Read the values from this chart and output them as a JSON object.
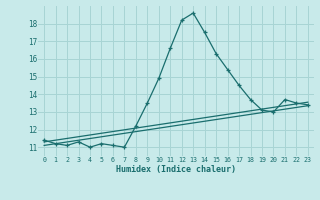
{
  "xlabel": "Humidex (Indice chaleur)",
  "bg_color": "#c8eaea",
  "grid_color": "#a8d4d4",
  "line_color": "#1a6e6e",
  "xlim": [
    -0.5,
    23.5
  ],
  "ylim": [
    10.5,
    19.0
  ],
  "yticks": [
    11,
    12,
    13,
    14,
    15,
    16,
    17,
    18
  ],
  "xticks": [
    0,
    1,
    2,
    3,
    4,
    5,
    6,
    7,
    8,
    9,
    10,
    11,
    12,
    13,
    14,
    15,
    16,
    17,
    18,
    19,
    20,
    21,
    22,
    23
  ],
  "series1_x": [
    0,
    1,
    2,
    3,
    4,
    5,
    6,
    7,
    8,
    9,
    10,
    11,
    12,
    13,
    14,
    15,
    16,
    17,
    18,
    19,
    20,
    21,
    22,
    23
  ],
  "series1_y": [
    11.4,
    11.2,
    11.1,
    11.3,
    11.0,
    11.2,
    11.1,
    11.0,
    12.2,
    13.5,
    14.9,
    16.6,
    18.2,
    18.6,
    17.5,
    16.3,
    15.4,
    14.5,
    13.7,
    13.1,
    13.0,
    13.7,
    13.5,
    13.4
  ],
  "series2_x": [
    0,
    23
  ],
  "series2_y": [
    11.3,
    13.55
  ],
  "series3_x": [
    0,
    23
  ],
  "series3_y": [
    11.1,
    13.35
  ]
}
